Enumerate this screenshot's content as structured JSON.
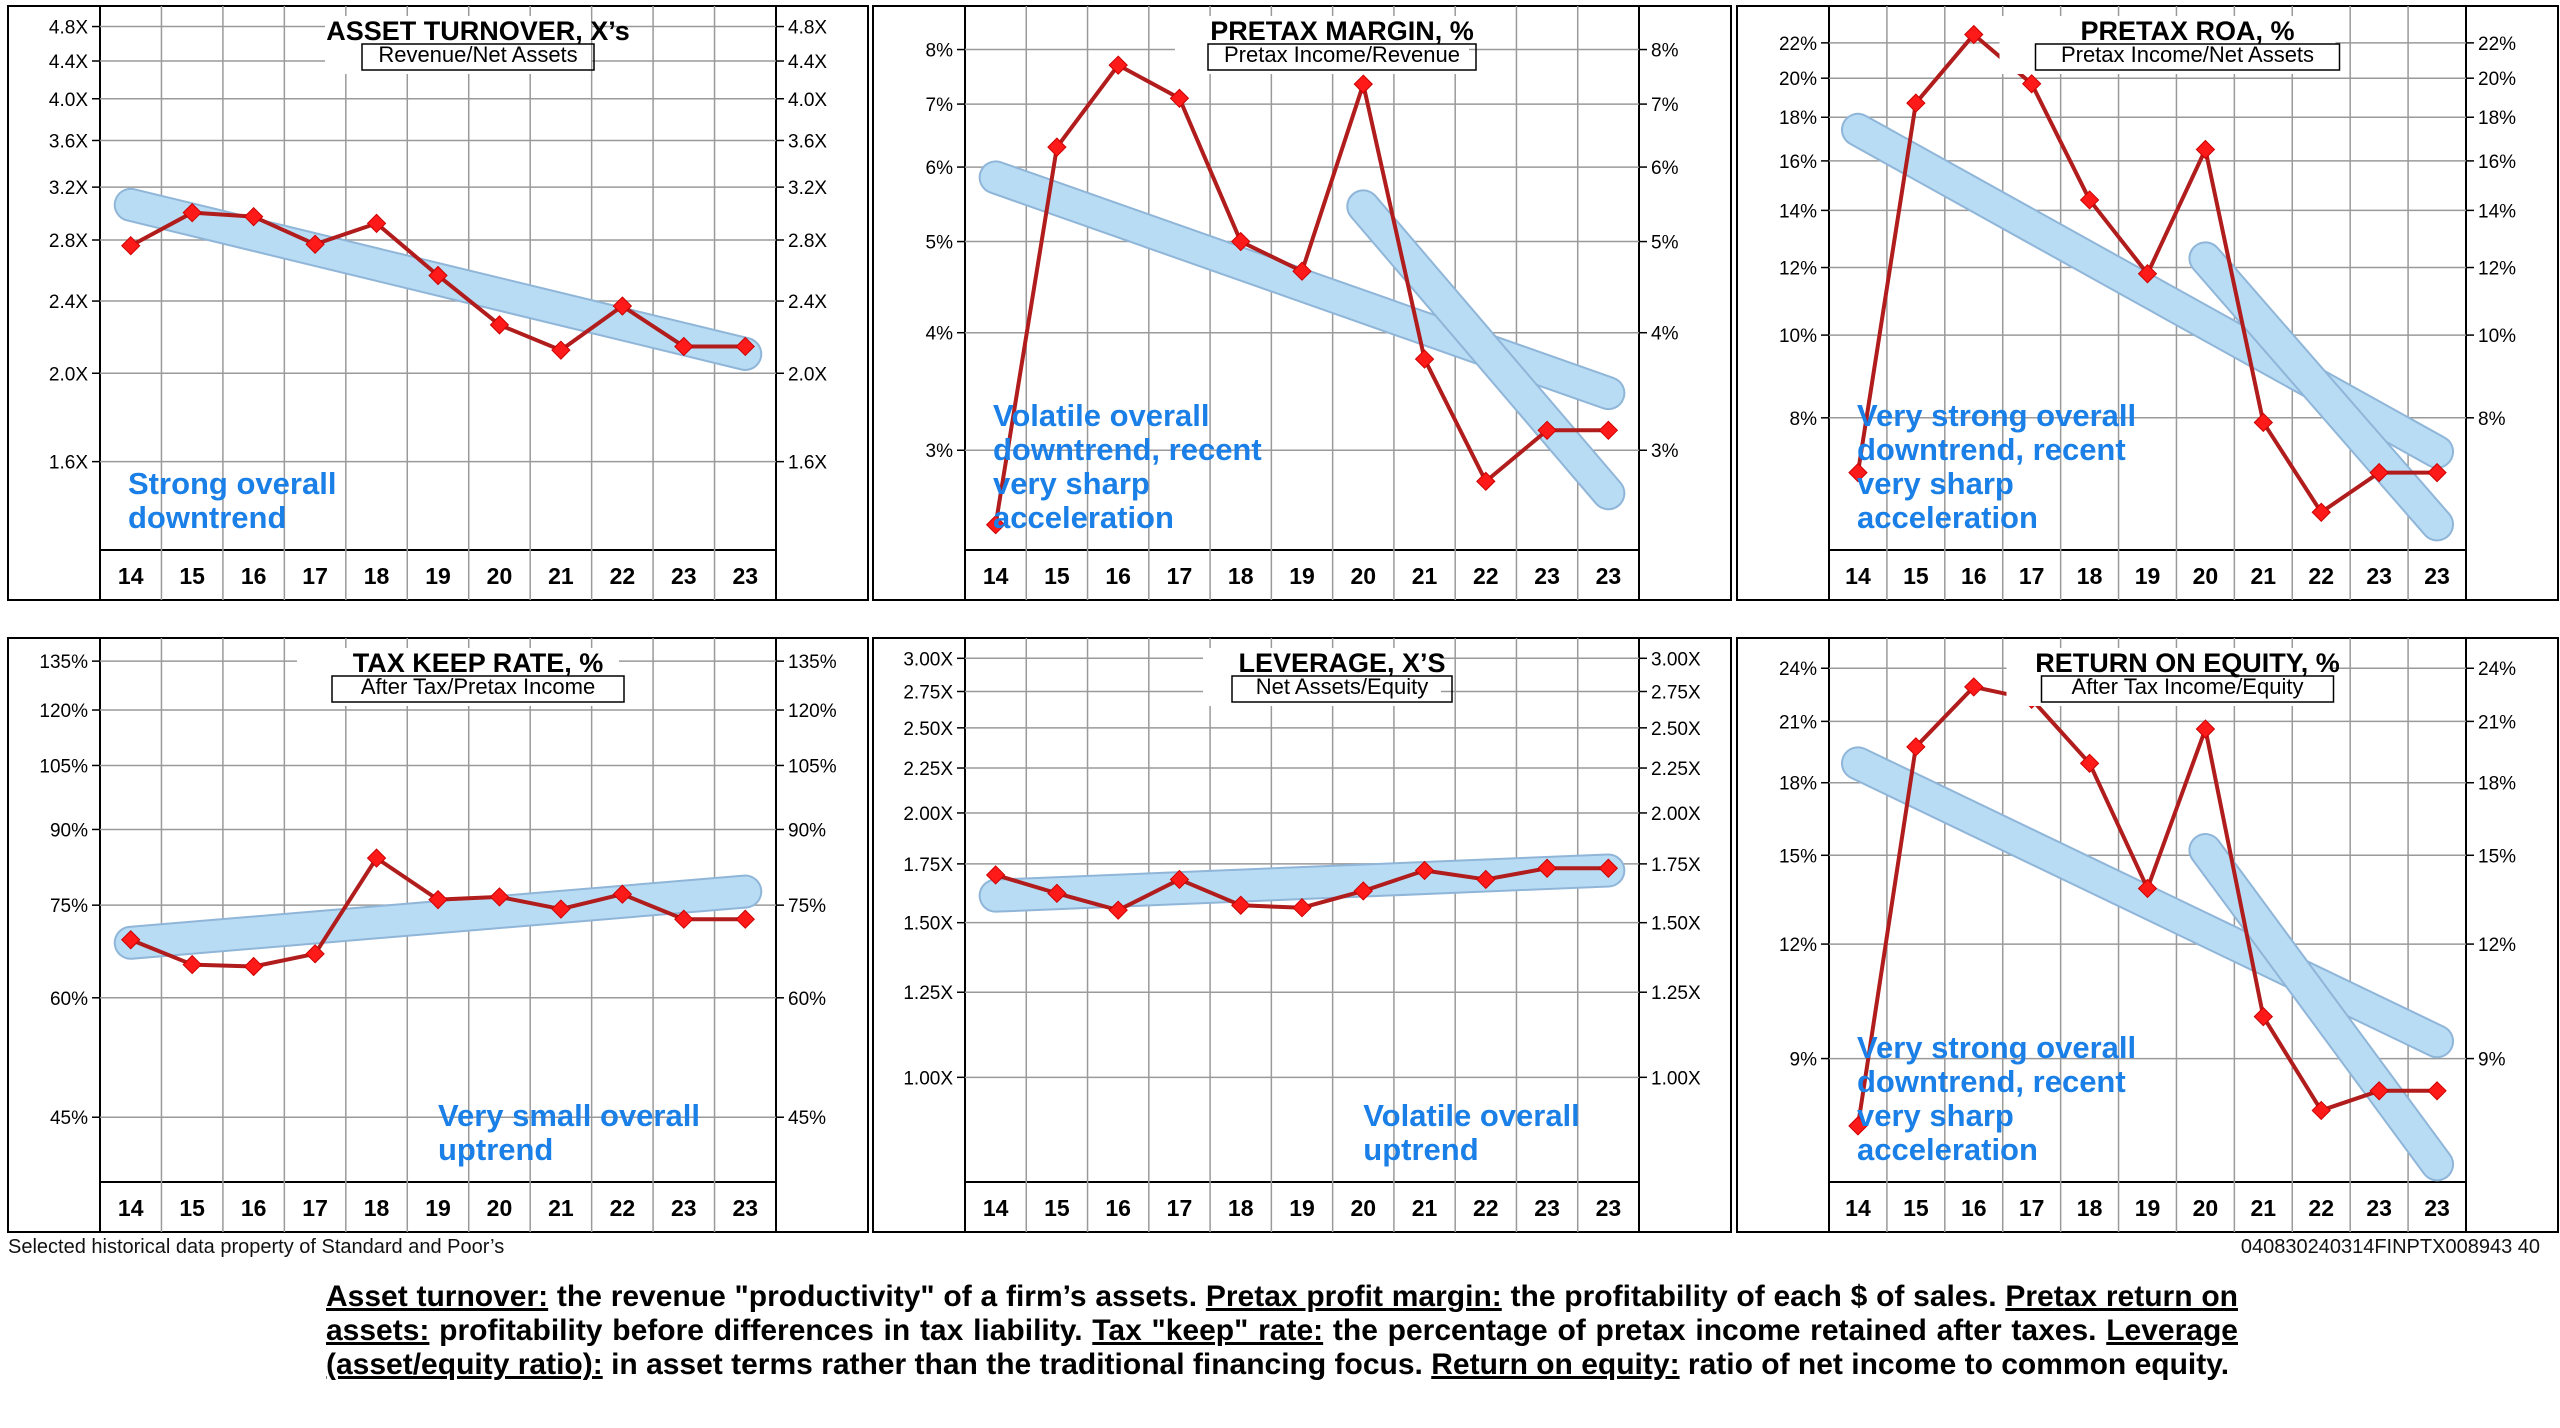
{
  "footer": {
    "source_note": "Selected historical data property of Standard and Poor’s",
    "doc_code": "040830240314FINPTX008943  40"
  },
  "glossary": [
    {
      "term": "Asset turnover:",
      "text": " the revenue \"productivity\" of a firm’s assets. "
    },
    {
      "term": "Pretax profit margin:",
      "text": " the profitability of each $ of sales. "
    },
    {
      "term": "Pretax return on assets:",
      "text": " profitability before differences in tax liability. "
    },
    {
      "term": "Tax \"keep\" rate:",
      "text": " the percentage of pretax income retained after taxes. "
    },
    {
      "term": "Leverage (asset/equity ratio):",
      "text": " in asset terms rather than the traditional financing focus. "
    },
    {
      "term": "Return on equity:",
      "text": " ratio of net income to common equity."
    }
  ],
  "colors": {
    "series": "#b11c1c",
    "marker": "#ff1a1a",
    "trend_fill": "#b9dcf5",
    "trend_stroke": "#8fb6d8",
    "annotation": "#1a7fe6",
    "grid": "#9a9a9a"
  },
  "chart_data": [
    {
      "type": "line",
      "title": "ASSET TURNOVER, X’s",
      "subtitle": "Revenue/Net Assets",
      "x": [
        "14",
        "15",
        "16",
        "17",
        "18",
        "19",
        "20",
        "21",
        "22",
        "23",
        "23"
      ],
      "values": [
        2.76,
        3.0,
        2.97,
        2.77,
        2.92,
        2.56,
        2.26,
        2.12,
        2.37,
        2.14,
        2.14
      ],
      "ylim": [
        1.28,
        4.88
      ],
      "scale": "log",
      "yticks": [
        1.6,
        2.0,
        2.4,
        2.8,
        3.2,
        3.6,
        4.0,
        4.4,
        4.8
      ],
      "ytick_labels": [
        "1.6X",
        "2.0X",
        "2.4X",
        "2.8X",
        "3.2X",
        "3.6X",
        "4.0X",
        "4.4X",
        "4.8X"
      ],
      "trendlines": [
        {
          "from_index": 0,
          "to_index": 10,
          "start": 3.06,
          "end": 2.1
        }
      ],
      "annotation": [
        "Strong overall",
        "downtrend"
      ],
      "annotation_position": "bottom-left"
    },
    {
      "type": "line",
      "title": "PRETAX MARGIN, %",
      "subtitle": "Pretax Income/Revenue",
      "x": [
        "14",
        "15",
        "16",
        "17",
        "18",
        "19",
        "20",
        "21",
        "22",
        "23",
        "23"
      ],
      "values": [
        2.5,
        6.3,
        7.7,
        7.1,
        5.0,
        4.65,
        7.35,
        3.75,
        2.78,
        3.15,
        3.15
      ],
      "ylim": [
        2.35,
        8.6
      ],
      "scale": "log",
      "yticks": [
        3,
        4,
        5,
        6,
        7,
        8
      ],
      "ytick_labels": [
        "3%",
        "4%",
        "5%",
        "6%",
        "7%",
        "8%"
      ],
      "trendlines": [
        {
          "from_index": 0,
          "to_index": 10,
          "start": 5.85,
          "end": 3.45
        },
        {
          "from_index": 6,
          "to_index": 10,
          "start": 5.45,
          "end": 2.7
        }
      ],
      "annotation": [
        "Volatile overall",
        "downtrend, recent",
        "very sharp",
        "acceleration"
      ],
      "annotation_position": "bottom-left"
    },
    {
      "type": "line",
      "title": "PRETAX ROA, %",
      "subtitle": "Pretax Income/Net Assets",
      "x": [
        "14",
        "15",
        "16",
        "17",
        "18",
        "19",
        "20",
        "21",
        "22",
        "23",
        "23"
      ],
      "values": [
        6.9,
        18.7,
        22.5,
        19.7,
        14.4,
        11.8,
        16.5,
        7.9,
        6.2,
        6.9,
        6.9
      ],
      "ylim": [
        5.6,
        23.4
      ],
      "scale": "log",
      "yticks": [
        8,
        10,
        12,
        14,
        16,
        18,
        20,
        22
      ],
      "ytick_labels": [
        "8%",
        "10%",
        "12%",
        "14%",
        "16%",
        "18%",
        "20%",
        "22%"
      ],
      "trendlines": [
        {
          "from_index": 0,
          "to_index": 10,
          "start": 17.4,
          "end": 7.3
        },
        {
          "from_index": 6,
          "to_index": 10,
          "start": 12.3,
          "end": 6.0
        }
      ],
      "annotation": [
        "Very strong overall",
        "downtrend, recent",
        "very sharp",
        "acceleration"
      ],
      "annotation_position": "bottom-left"
    },
    {
      "type": "line",
      "title": "TAX KEEP RATE, %",
      "subtitle": "After Tax/Pretax Income",
      "x": [
        "14",
        "15",
        "16",
        "17",
        "18",
        "19",
        "20",
        "21",
        "22",
        "23",
        "23"
      ],
      "values": [
        69,
        65,
        64.7,
        66.7,
        84,
        76,
        76.5,
        74.3,
        77,
        72.5,
        72.5
      ],
      "ylim": [
        38.5,
        138
      ],
      "scale": "log",
      "yticks": [
        45,
        60,
        75,
        90,
        105,
        120,
        135
      ],
      "ytick_labels": [
        "45%",
        "60%",
        "75%",
        "90%",
        "105%",
        "120%",
        "135%"
      ],
      "trendlines": [
        {
          "from_index": 0,
          "to_index": 10,
          "start": 68.5,
          "end": 77.5
        }
      ],
      "annotation": [
        "Very small overall",
        "uptrend"
      ],
      "annotation_position": "bottom-center"
    },
    {
      "type": "line",
      "title": "LEVERAGE, X’S",
      "subtitle": "Net Assets/Equity",
      "x": [
        "14",
        "15",
        "16",
        "17",
        "18",
        "19",
        "20",
        "21",
        "22",
        "23",
        "23"
      ],
      "values": [
        1.7,
        1.62,
        1.55,
        1.68,
        1.57,
        1.56,
        1.63,
        1.72,
        1.68,
        1.73,
        1.73
      ],
      "ylim": [
        0.76,
        3.05
      ],
      "scale": "log",
      "yticks": [
        1.0,
        1.25,
        1.5,
        1.75,
        2.0,
        2.25,
        2.5,
        2.75,
        3.0
      ],
      "ytick_labels": [
        "1.00X",
        "1.25X",
        "1.50X",
        "1.75X",
        "2.00X",
        "2.25X",
        "2.50X",
        "2.75X",
        "3.00X"
      ],
      "trendlines": [
        {
          "from_index": 0,
          "to_index": 10,
          "start": 1.61,
          "end": 1.72
        }
      ],
      "annotation": [
        "Volatile overall",
        "uptrend"
      ],
      "annotation_position": "bottom-right"
    },
    {
      "type": "line",
      "title": "RETURN ON EQUITY, %",
      "subtitle": "After Tax Income/Equity",
      "x": [
        "14",
        "15",
        "16",
        "17",
        "18",
        "19",
        "20",
        "21",
        "22",
        "23",
        "23"
      ],
      "values": [
        7.6,
        19.7,
        22.9,
        22.2,
        18.9,
        13.8,
        20.6,
        10.0,
        7.9,
        8.3,
        8.3
      ],
      "ylim": [
        6.6,
        25.0
      ],
      "scale": "log",
      "yticks": [
        9,
        12,
        15,
        18,
        21,
        24
      ],
      "ytick_labels": [
        "9%",
        "12%",
        "15%",
        "18%",
        "21%",
        "24%"
      ],
      "trendlines": [
        {
          "from_index": 0,
          "to_index": 10,
          "start": 18.9,
          "end": 9.4
        },
        {
          "from_index": 6,
          "to_index": 10,
          "start": 15.2,
          "end": 6.9
        }
      ],
      "annotation": [
        "Very strong overall",
        "downtrend, recent",
        "very sharp",
        "acceleration"
      ],
      "annotation_position": "bottom-left"
    }
  ]
}
